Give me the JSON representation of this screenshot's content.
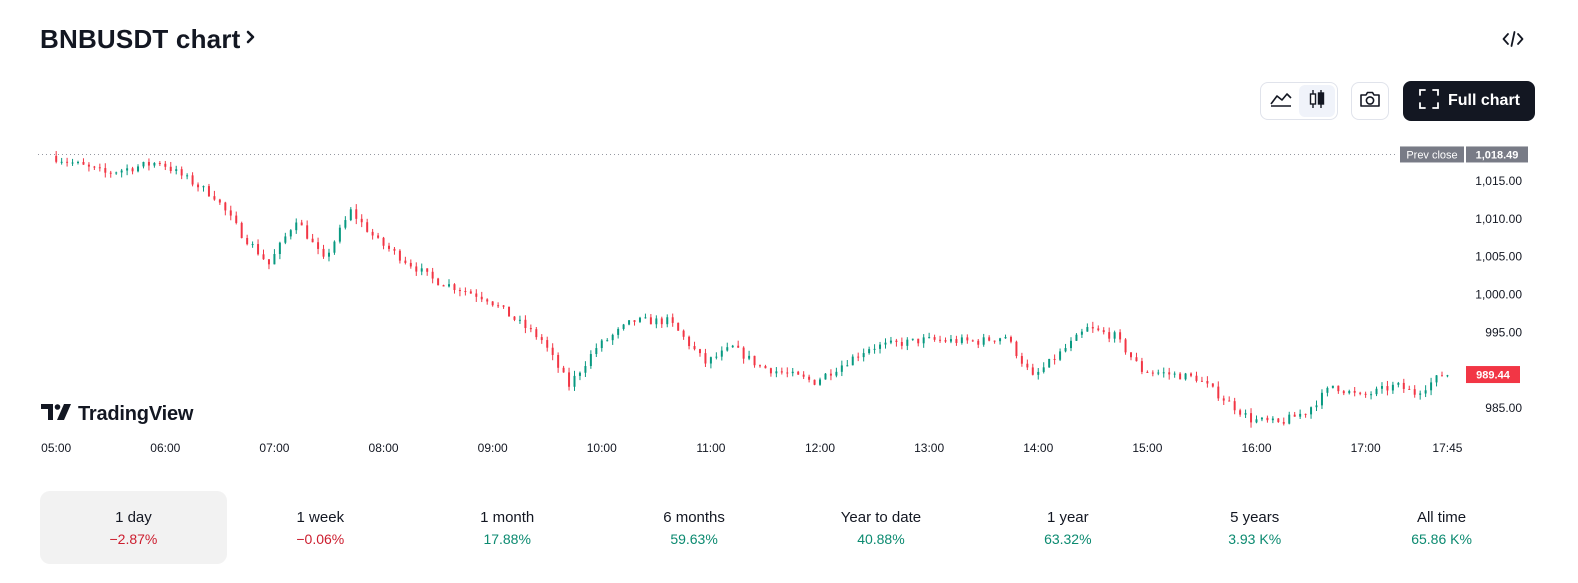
{
  "header": {
    "title": "BNBUSDT chart",
    "title_suffix": "›"
  },
  "icons": {
    "embed": "code-embed-icon",
    "line": "line-chart-icon",
    "candles": "candlestick-icon",
    "snapshot": "camera-icon",
    "fullscreen": "fullscreen-icon",
    "chevron": "chevron-right-icon",
    "logo": "tradingview-logo-icon"
  },
  "toolbar": {
    "full_chart_label": "Full chart"
  },
  "branding": {
    "logo_text": "TradingView"
  },
  "colors": {
    "up": "#089981",
    "down": "#f23645",
    "text": "#131722",
    "prev_close_bg": "#787b86",
    "last_price_bg": "#f23645"
  },
  "chart_data": {
    "type": "candlestick",
    "title": "BNBUSDT chart",
    "y_ticks": [
      "1,015.00",
      "1,010.00",
      "1,005.00",
      "1,000.00",
      "995.00",
      "985.00"
    ],
    "y_tick_values": [
      1015,
      1010,
      1005,
      1000,
      995,
      985
    ],
    "x_ticks": [
      "05:00",
      "06:00",
      "07:00",
      "08:00",
      "09:00",
      "10:00",
      "11:00",
      "12:00",
      "13:00",
      "14:00",
      "15:00",
      "16:00",
      "17:00",
      "17:45"
    ],
    "ylim": [
      980.8,
      1020.4
    ],
    "prev_close": {
      "label": "Prev close",
      "value": 1018.49,
      "value_text": "1,018.49"
    },
    "last_price": {
      "value": 989.44,
      "value_text": "989.44"
    },
    "grid": false,
    "series": [
      {
        "name": "BNBUSDT",
        "x": [
          "05:00",
          "05:30",
          "06:00",
          "06:30",
          "06:45",
          "07:00",
          "07:15",
          "07:30",
          "07:45",
          "08:00",
          "08:30",
          "09:00",
          "09:30",
          "09:45",
          "10:00",
          "10:20",
          "10:40",
          "11:00",
          "11:15",
          "11:30",
          "12:00",
          "12:30",
          "13:00",
          "13:30",
          "13:45",
          "14:00",
          "14:30",
          "14:45",
          "15:00",
          "15:30",
          "16:00",
          "16:15",
          "16:30",
          "16:45",
          "17:00",
          "17:20",
          "17:30",
          "17:40",
          "17:45"
        ],
        "values": [
          1018.3,
          1016.0,
          1017.5,
          1013.0,
          1008.0,
          1004.0,
          1010.0,
          1004.5,
          1011.0,
          1007.0,
          1002.0,
          999.5,
          994.0,
          988.0,
          993.0,
          996.5,
          996.5,
          991.0,
          993.0,
          990.5,
          988.5,
          993.0,
          994.0,
          993.8,
          994.5,
          989.0,
          995.5,
          994.5,
          990.0,
          989.0,
          983.5,
          983.0,
          984.5,
          988.0,
          986.5,
          988.0,
          987.0,
          988.5,
          989.44
        ]
      }
    ]
  },
  "periods": [
    {
      "label": "1 day",
      "change": "−2.87%",
      "dir": "neg"
    },
    {
      "label": "1 week",
      "change": "−0.06%",
      "dir": "neg"
    },
    {
      "label": "1 month",
      "change": "17.88%",
      "dir": "pos"
    },
    {
      "label": "6 months",
      "change": "59.63%",
      "dir": "pos"
    },
    {
      "label": "Year to date",
      "change": "40.88%",
      "dir": "pos"
    },
    {
      "label": "1 year",
      "change": "63.32%",
      "dir": "pos"
    },
    {
      "label": "5 years",
      "change": "3.93 K%",
      "dir": "pos"
    },
    {
      "label": "All time",
      "change": "65.86 K%",
      "dir": "pos"
    }
  ]
}
